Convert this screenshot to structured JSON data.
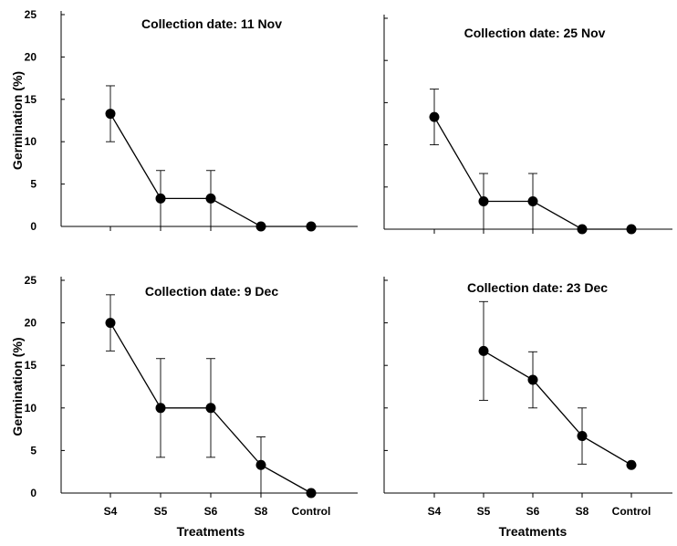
{
  "chart_data": [
    {
      "type": "line",
      "title": "Collection date: 11 Nov",
      "xlabel": "",
      "ylabel": "Germination (%)",
      "categories": [
        "S4",
        "S5",
        "S6",
        "S8",
        "Control"
      ],
      "show_x_tick_labels": false,
      "show_y_tick_labels": true,
      "ylim": [
        0,
        25
      ],
      "yticks": [
        0,
        5,
        10,
        15,
        20,
        25
      ],
      "grid": false,
      "series": [
        {
          "values": [
            13.3,
            3.3,
            3.3,
            0,
            0
          ],
          "errors": [
            3.3,
            3.3,
            3.3,
            0,
            0
          ]
        }
      ]
    },
    {
      "type": "line",
      "title": "Collection date: 25 Nov",
      "xlabel": "",
      "ylabel": "",
      "categories": [
        "S4",
        "S5",
        "S6",
        "S8",
        "Control"
      ],
      "show_x_tick_labels": false,
      "show_y_tick_labels": false,
      "ylim": [
        0,
        25
      ],
      "yticks": [
        0,
        5,
        10,
        15,
        20,
        25
      ],
      "grid": false,
      "series": [
        {
          "values": [
            13.3,
            3.3,
            3.3,
            0,
            0
          ],
          "errors": [
            3.3,
            3.3,
            3.3,
            0,
            0
          ]
        }
      ]
    },
    {
      "type": "line",
      "title": "Collection date: 9 Dec",
      "xlabel": "Treatments",
      "ylabel": "Germination (%)",
      "categories": [
        "S4",
        "S5",
        "S6",
        "S8",
        "Control"
      ],
      "show_x_tick_labels": true,
      "show_y_tick_labels": true,
      "ylim": [
        0,
        25
      ],
      "yticks": [
        0,
        5,
        10,
        15,
        20,
        25
      ],
      "grid": false,
      "series": [
        {
          "values": [
            20,
            10,
            10,
            3.3,
            0
          ],
          "errors": [
            3.3,
            5.8,
            5.8,
            3.3,
            0
          ]
        }
      ]
    },
    {
      "type": "line",
      "title": "Collection date: 23 Dec",
      "xlabel": "Treatments",
      "ylabel": "",
      "categories": [
        "S4",
        "S5",
        "S6",
        "S8",
        "Control"
      ],
      "show_x_tick_labels": true,
      "show_y_tick_labels": false,
      "ylim": [
        0,
        25
      ],
      "yticks": [
        0,
        5,
        10,
        15,
        20,
        25
      ],
      "grid": false,
      "series": [
        {
          "values": [
            null,
            16.7,
            13.3,
            6.7,
            3.3
          ],
          "errors": [
            null,
            5.8,
            3.3,
            3.3,
            0
          ]
        }
      ]
    }
  ]
}
